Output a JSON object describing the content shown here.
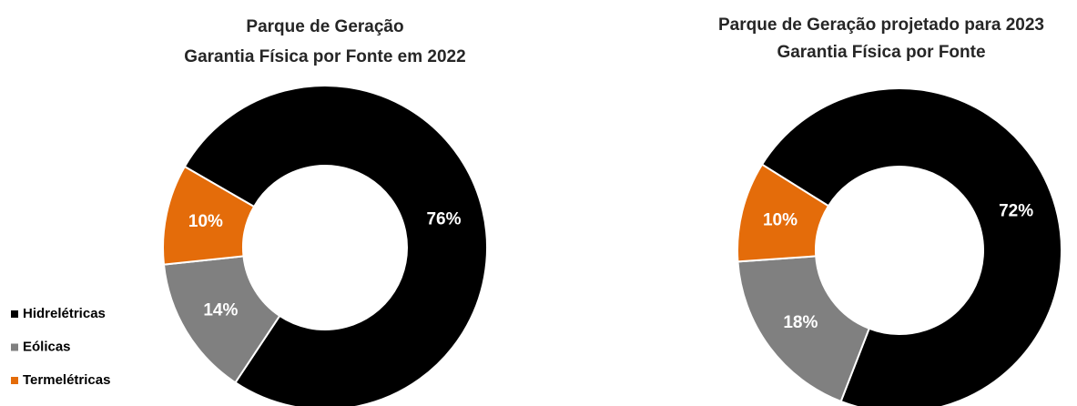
{
  "chart_data": [
    {
      "type": "pie",
      "title": [
        "Parque de Geração",
        "Garantia Física por Fonte em 2022"
      ],
      "categories": [
        "Hidrelétricas",
        "Eólicas",
        "Termelétricas"
      ],
      "values": [
        76,
        14,
        10
      ],
      "value_labels": [
        "76%",
        "14%",
        "10%"
      ],
      "colors": [
        "#000000",
        "#808080",
        "#e46c0a"
      ],
      "legend": "lower left",
      "donut": true
    },
    {
      "type": "pie",
      "title": [
        "Parque de Geração projetado para 2023",
        "Garantia Física por Fonte"
      ],
      "categories": [
        "Hidrelétricas",
        "Eólicas",
        "Termelétricas"
      ],
      "values": [
        72,
        18,
        10
      ],
      "value_labels": [
        "72%",
        "18%",
        "10%"
      ],
      "colors": [
        "#000000",
        "#808080",
        "#e46c0a"
      ],
      "donut": true
    }
  ]
}
